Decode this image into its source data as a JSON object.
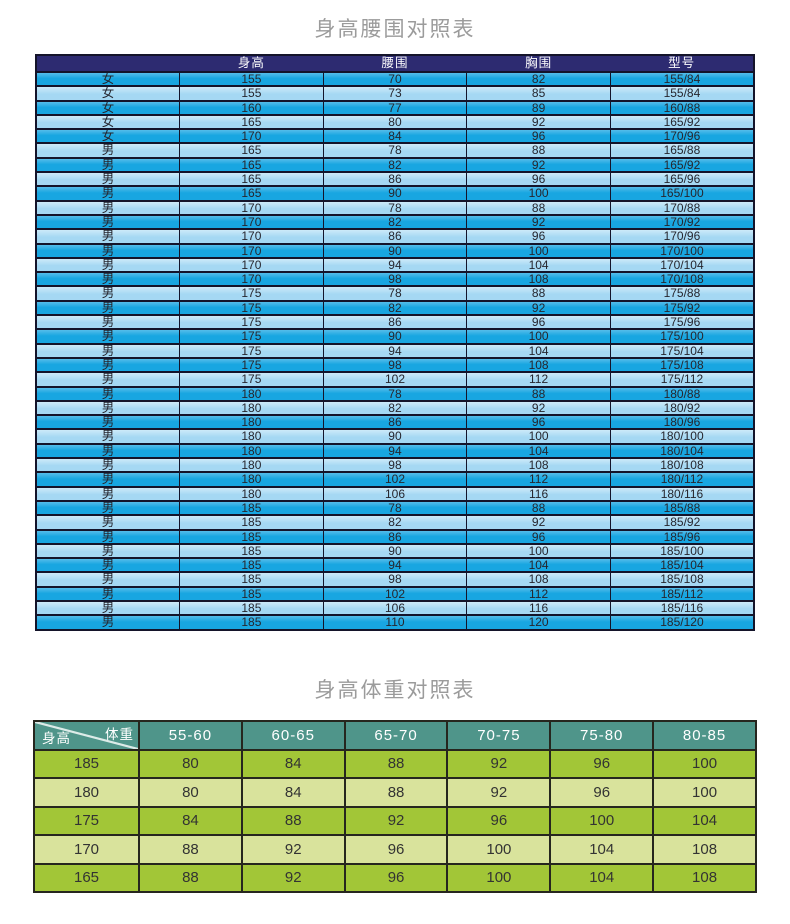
{
  "table1": {
    "title": "身高腰围对照表",
    "columns": [
      "",
      "身高",
      "腰围",
      "胸围",
      "型号"
    ],
    "column_names": [
      "gender",
      "height",
      "waist",
      "chest",
      "model"
    ],
    "rows": [
      [
        "女",
        "155",
        "70",
        "82",
        "155/84"
      ],
      [
        "女",
        "155",
        "73",
        "85",
        "155/84"
      ],
      [
        "女",
        "160",
        "77",
        "89",
        "160/88"
      ],
      [
        "女",
        "165",
        "80",
        "92",
        "165/92"
      ],
      [
        "女",
        "170",
        "84",
        "96",
        "170/96"
      ],
      [
        "男",
        "165",
        "78",
        "88",
        "165/88"
      ],
      [
        "男",
        "165",
        "82",
        "92",
        "165/92"
      ],
      [
        "男",
        "165",
        "86",
        "96",
        "165/96"
      ],
      [
        "男",
        "165",
        "90",
        "100",
        "165/100"
      ],
      [
        "男",
        "170",
        "78",
        "88",
        "170/88"
      ],
      [
        "男",
        "170",
        "82",
        "92",
        "170/92"
      ],
      [
        "男",
        "170",
        "86",
        "96",
        "170/96"
      ],
      [
        "男",
        "170",
        "90",
        "100",
        "170/100"
      ],
      [
        "男",
        "170",
        "94",
        "104",
        "170/104"
      ],
      [
        "男",
        "170",
        "98",
        "108",
        "170/108"
      ],
      [
        "男",
        "175",
        "78",
        "88",
        "175/88"
      ],
      [
        "男",
        "175",
        "82",
        "92",
        "175/92"
      ],
      [
        "男",
        "175",
        "86",
        "96",
        "175/96"
      ],
      [
        "男",
        "175",
        "90",
        "100",
        "175/100"
      ],
      [
        "男",
        "175",
        "94",
        "104",
        "175/104"
      ],
      [
        "男",
        "175",
        "98",
        "108",
        "175/108"
      ],
      [
        "男",
        "175",
        "102",
        "112",
        "175/112"
      ],
      [
        "男",
        "180",
        "78",
        "88",
        "180/88"
      ],
      [
        "男",
        "180",
        "82",
        "92",
        "180/92"
      ],
      [
        "男",
        "180",
        "86",
        "96",
        "180/96"
      ],
      [
        "男",
        "180",
        "90",
        "100",
        "180/100"
      ],
      [
        "男",
        "180",
        "94",
        "104",
        "180/104"
      ],
      [
        "男",
        "180",
        "98",
        "108",
        "180/108"
      ],
      [
        "男",
        "180",
        "102",
        "112",
        "180/112"
      ],
      [
        "男",
        "180",
        "106",
        "116",
        "180/116"
      ],
      [
        "男",
        "185",
        "78",
        "88",
        "185/88"
      ],
      [
        "男",
        "185",
        "82",
        "92",
        "185/92"
      ],
      [
        "男",
        "185",
        "86",
        "96",
        "185/96"
      ],
      [
        "男",
        "185",
        "90",
        "100",
        "185/100"
      ],
      [
        "男",
        "185",
        "94",
        "104",
        "185/104"
      ],
      [
        "男",
        "185",
        "98",
        "108",
        "185/108"
      ],
      [
        "男",
        "185",
        "102",
        "112",
        "185/112"
      ],
      [
        "男",
        "185",
        "106",
        "116",
        "185/116"
      ],
      [
        "男",
        "185",
        "110",
        "120",
        "185/120"
      ]
    ],
    "colors": {
      "header_bg": "#2d2b71",
      "header_text": "#ffffff",
      "row_odd": "#18a6e1",
      "row_odd_edge": "#55bdea",
      "row_even": "#a5d8f3",
      "row_even_edge": "#cdeaf9",
      "cell_text": "#26262e",
      "border": "#14142a"
    }
  },
  "table2": {
    "title": "身高体重对照表",
    "corner": {
      "top_label": "体重",
      "bottom_label": "身高"
    },
    "columns": [
      "55-60",
      "60-65",
      "65-70",
      "70-75",
      "75-80",
      "80-85"
    ],
    "rows": [
      {
        "height": "185",
        "values": [
          "80",
          "84",
          "88",
          "92",
          "96",
          "100"
        ]
      },
      {
        "height": "180",
        "values": [
          "80",
          "84",
          "88",
          "92",
          "96",
          "100"
        ]
      },
      {
        "height": "175",
        "values": [
          "84",
          "88",
          "92",
          "96",
          "100",
          "104"
        ]
      },
      {
        "height": "170",
        "values": [
          "88",
          "92",
          "96",
          "100",
          "104",
          "108"
        ]
      },
      {
        "height": "165",
        "values": [
          "88",
          "92",
          "96",
          "100",
          "104",
          "108"
        ]
      }
    ],
    "colors": {
      "header_bg": "#4f958a",
      "header_text": "#ffffff",
      "row_odd": "#a2c637",
      "row_even": "#d9e39c",
      "cell_text": "#333333",
      "border": "#26261e"
    }
  }
}
